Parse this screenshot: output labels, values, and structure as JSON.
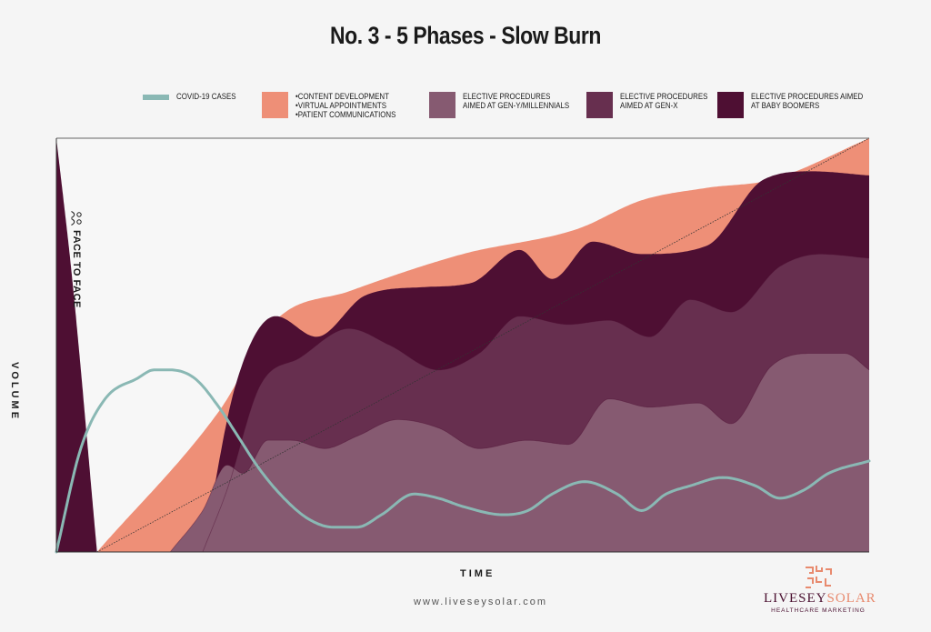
{
  "chart_data": {
    "type": "area",
    "title": "No. 3 - 5 Phases - Slow Burn",
    "xlabel": "TIME",
    "ylabel": "VOLUME",
    "xlim": [
      0,
      100
    ],
    "ylim": [
      0,
      100
    ],
    "annotation": "FACE TO FACE",
    "legend": [
      {
        "name": "COVID-19 CASES",
        "lines": [
          "COVID-19 CASES"
        ],
        "kind": "line",
        "color": "#8ab8b4"
      },
      {
        "name": "content-virtual-patient",
        "lines": [
          "•CONTENT DEVELOPMENT",
          "•VIRTUAL APPOINTMENTS",
          "•PATIENT COMMUNICATIONS"
        ],
        "kind": "area",
        "color": "#ee8f77"
      },
      {
        "name": "gen-y",
        "lines": [
          "ELECTIVE PROCEDURES",
          "AIMED AT GEN-Y/MILLENNIALS"
        ],
        "kind": "area",
        "color": "#865a71"
      },
      {
        "name": "gen-x",
        "lines": [
          "ELECTIVE PROCEDURES",
          "AIMED AT GEN-X"
        ],
        "kind": "area",
        "color": "#672f4f"
      },
      {
        "name": "boomers",
        "lines": [
          "ELECTIVE PROCEDURES AIMED",
          "AT BABY BOOMERS"
        ],
        "kind": "area",
        "color": "#4e0f33"
      }
    ],
    "face_to_face": {
      "color": "#4e0f33",
      "x": [
        0,
        2,
        5
      ],
      "y": [
        100,
        65,
        0
      ]
    },
    "diagonal": {
      "x": [
        5,
        100
      ],
      "y": [
        0,
        100
      ]
    },
    "series": [
      {
        "name": "digital-top",
        "x": [
          5,
          20,
          27,
          36,
          50,
          64,
          72,
          80,
          88,
          100
        ],
        "y": [
          0,
          34,
          56,
          63,
          72,
          78,
          85,
          88,
          90,
          100
        ]
      },
      {
        "name": "boomers-top",
        "x": [
          18,
          22,
          27,
          32,
          38,
          45,
          51,
          57,
          61,
          66,
          72,
          80,
          87,
          93,
          100
        ],
        "y": [
          0,
          40,
          57,
          52,
          62,
          64,
          65,
          73,
          66,
          75,
          72,
          74,
          90,
          92,
          91
        ]
      },
      {
        "name": "genx-top",
        "x": [
          18,
          21,
          25,
          30,
          36,
          41,
          47,
          52,
          57,
          63,
          68,
          73,
          78,
          83,
          89,
          94,
          100
        ],
        "y": [
          0,
          15,
          40,
          47,
          54,
          50,
          44,
          48,
          57,
          55,
          56,
          52,
          61,
          58,
          69,
          72,
          71
        ]
      },
      {
        "name": "geny-top",
        "x": [
          14,
          18,
          21,
          23,
          26,
          29,
          33,
          37,
          42,
          47,
          52,
          58,
          63,
          68,
          73,
          79,
          83,
          88,
          93,
          97,
          100
        ],
        "y": [
          0,
          10,
          21,
          19,
          27,
          27,
          25,
          28,
          32,
          30,
          25,
          27,
          26,
          37,
          35,
          36,
          31,
          45,
          48,
          48,
          44
        ]
      },
      {
        "name": "COVID-19 CASES",
        "x": [
          0,
          3,
          6,
          10,
          12,
          14,
          17,
          20,
          22,
          25,
          28,
          31,
          34,
          37,
          40,
          44,
          47,
          50,
          55,
          58,
          61,
          65,
          69,
          72,
          75,
          78,
          82,
          86,
          89,
          92,
          95,
          100
        ],
        "y": [
          0,
          25,
          37,
          42,
          44,
          44,
          42,
          35,
          29,
          20,
          13,
          8,
          6,
          6,
          9,
          14,
          13,
          11,
          9,
          10,
          14,
          17,
          14,
          10,
          14,
          16,
          18,
          16,
          13,
          15,
          19,
          22
        ]
      }
    ]
  },
  "footer": {
    "website": "www.liveseysolar.com",
    "logo_part1": "LIVESEY",
    "logo_part2": "SOLAR",
    "logo_sub": "HEALTHCARE MARKETING"
  }
}
